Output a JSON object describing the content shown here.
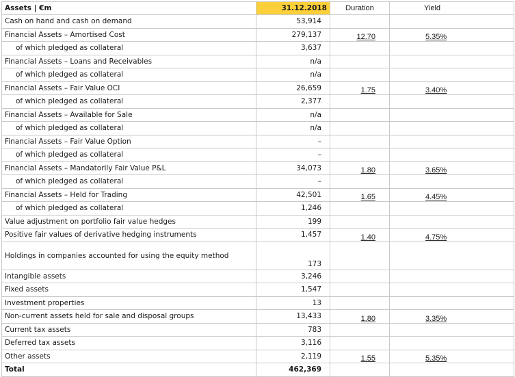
{
  "header": {
    "label": "Assets | €m",
    "date": "31.12.2018",
    "duration": "Duration",
    "yield": "Yield"
  },
  "rows": [
    {
      "label": "Cash on hand and cash on demand",
      "value": "53,914",
      "duration": "",
      "yield": ""
    },
    {
      "label": "Financial Assets – Amortised Cost",
      "value": "279,137",
      "duration": "12.70",
      "yield": "5.35%"
    },
    {
      "label": "of which pledged as collateral",
      "value": "3,637",
      "duration": "",
      "yield": ""
    },
    {
      "label": "Financial Assets – Loans and Receivables",
      "value": "n/a",
      "duration": "",
      "yield": ""
    },
    {
      "label": "of which pledged as collateral",
      "value": "n/a",
      "duration": "",
      "yield": ""
    },
    {
      "label": "Financial Assets – Fair Value OCI",
      "value": "26,659",
      "duration": "1.75",
      "yield": "3.40%"
    },
    {
      "label": "of which pledged as collateral",
      "value": "2,377",
      "duration": "",
      "yield": ""
    },
    {
      "label": "Financial Assets – Available for Sale",
      "value": "n/a",
      "duration": "",
      "yield": ""
    },
    {
      "label": "of which pledged as collateral",
      "value": "n/a",
      "duration": "",
      "yield": ""
    },
    {
      "label": "Financial Assets – Fair Value Option",
      "value": "–",
      "duration": "",
      "yield": ""
    },
    {
      "label": "of which pledged as collateral",
      "value": "–",
      "duration": "",
      "yield": ""
    },
    {
      "label": "Financial Assets – Mandatorily Fair Value P&L",
      "value": "34,073",
      "duration": "1.80",
      "yield": "3.65%"
    },
    {
      "label": "of which pledged as collateral",
      "value": "–",
      "duration": "",
      "yield": ""
    },
    {
      "label": "Financial Assets – Held for Trading",
      "value": "42,501",
      "duration": "1.65",
      "yield": "4.45%"
    },
    {
      "label": "of which pledged as collateral",
      "value": "1,246",
      "duration": "",
      "yield": ""
    },
    {
      "label": "Value adjustment on portfolio fair value hedges",
      "value": "199",
      "duration": "",
      "yield": ""
    },
    {
      "label": "Positive fair values of derivative hedging instruments",
      "value": "1,457",
      "duration": "1.40",
      "yield": "4.75%"
    },
    {
      "label": "Holdings in companies accounted for using the equity method",
      "value": "173",
      "duration": "",
      "yield": ""
    },
    {
      "label": "Intangible assets",
      "value": "3,246",
      "duration": "",
      "yield": ""
    },
    {
      "label": "Fixed assets",
      "value": "1,547",
      "duration": "",
      "yield": ""
    },
    {
      "label": "Investment properties",
      "value": "13",
      "duration": "",
      "yield": ""
    },
    {
      "label": "Non-current assets held for sale and disposal groups",
      "value": "13,433",
      "duration": "1.80",
      "yield": "3.35%"
    },
    {
      "label": "Current tax assets",
      "value": "783",
      "duration": "",
      "yield": ""
    },
    {
      "label": "Deferred tax assets",
      "value": "3,116",
      "duration": "",
      "yield": ""
    },
    {
      "label": "Other assets",
      "value": "2,119",
      "duration": "1.55",
      "yield": "5.35%"
    },
    {
      "label": "Total",
      "value": "462,369",
      "duration": "",
      "yield": ""
    }
  ],
  "colors": {
    "header_highlight": "#fcd03a",
    "border": "#c9c9c9"
  }
}
